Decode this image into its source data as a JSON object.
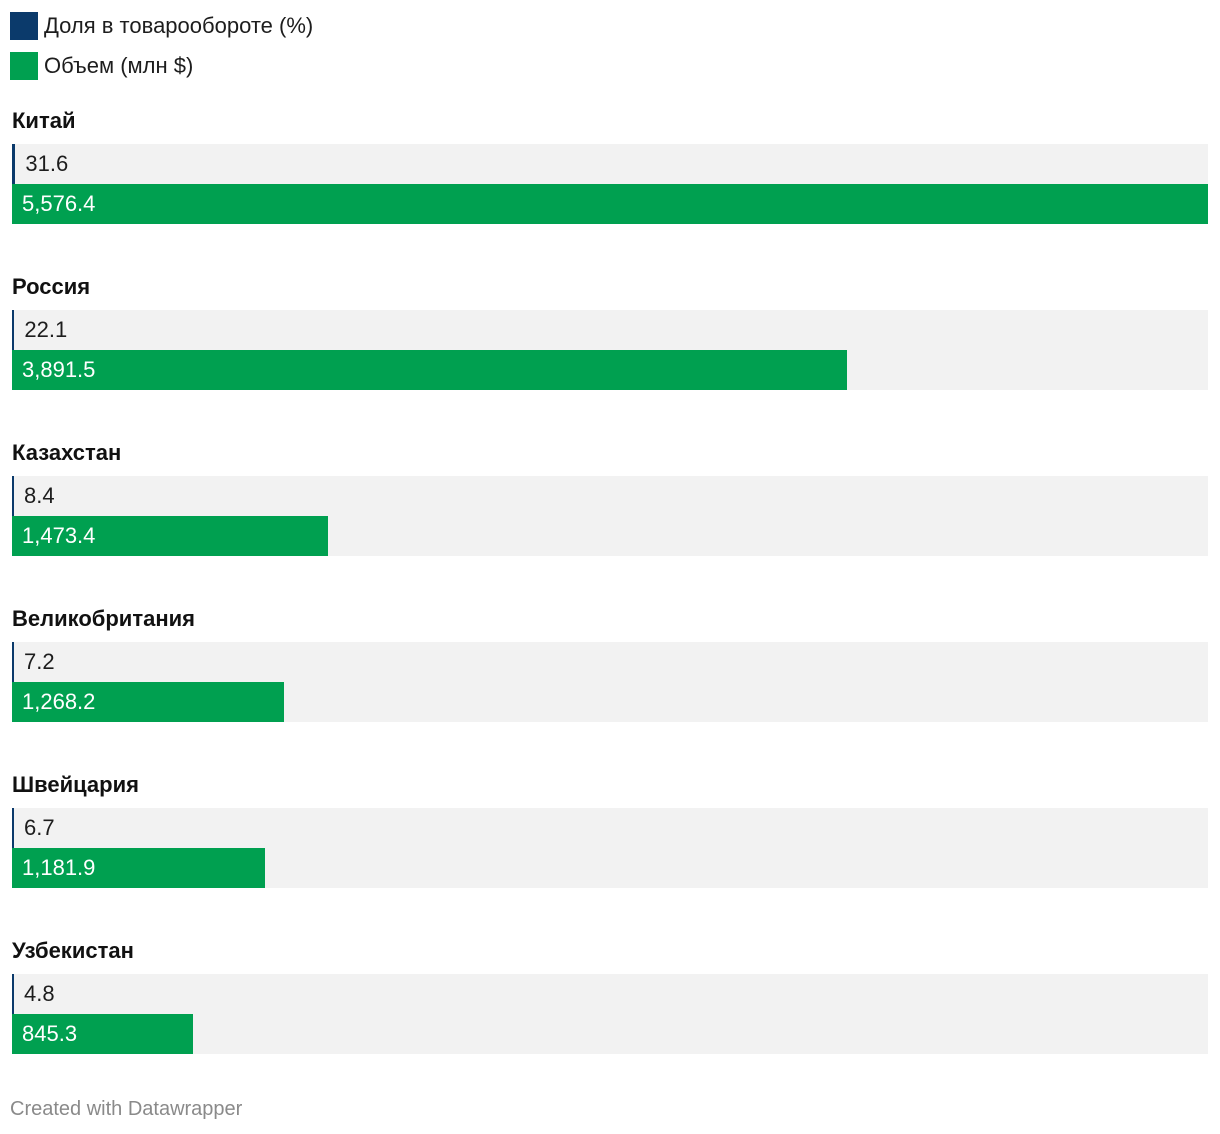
{
  "legend": [
    {
      "label": "Доля в товарообороте (%)",
      "color": "#0b3a6b"
    },
    {
      "label": "Объем (млн $)",
      "color": "#00a050"
    }
  ],
  "chart_data": {
    "type": "bar",
    "orientation": "horizontal",
    "categories": [
      "Китай",
      "Россия",
      "Казахстан",
      "Великобритания",
      "Швейцария",
      "Узбекистан"
    ],
    "series": [
      {
        "name": "Доля в товарообороте (%)",
        "values": [
          31.6,
          22.1,
          8.4,
          7.2,
          6.7,
          4.8
        ],
        "labels": [
          "31.6",
          "22.1",
          "8.4",
          "7.2",
          "6.7",
          "4.8"
        ],
        "color": "#0b3a6b",
        "max": 1000
      },
      {
        "name": "Объем (млн $)",
        "values": [
          5576.4,
          3891.5,
          1473.4,
          1268.2,
          1181.9,
          845.3
        ],
        "labels": [
          "5,576.4",
          "3,891.5",
          "1,473.4",
          "1,268.2",
          "1,181.9",
          "845.3"
        ],
        "color": "#00a050",
        "max": 5576.4
      }
    ],
    "grid": false,
    "legend_position": "top-left"
  },
  "credit": "Created with Datawrapper"
}
